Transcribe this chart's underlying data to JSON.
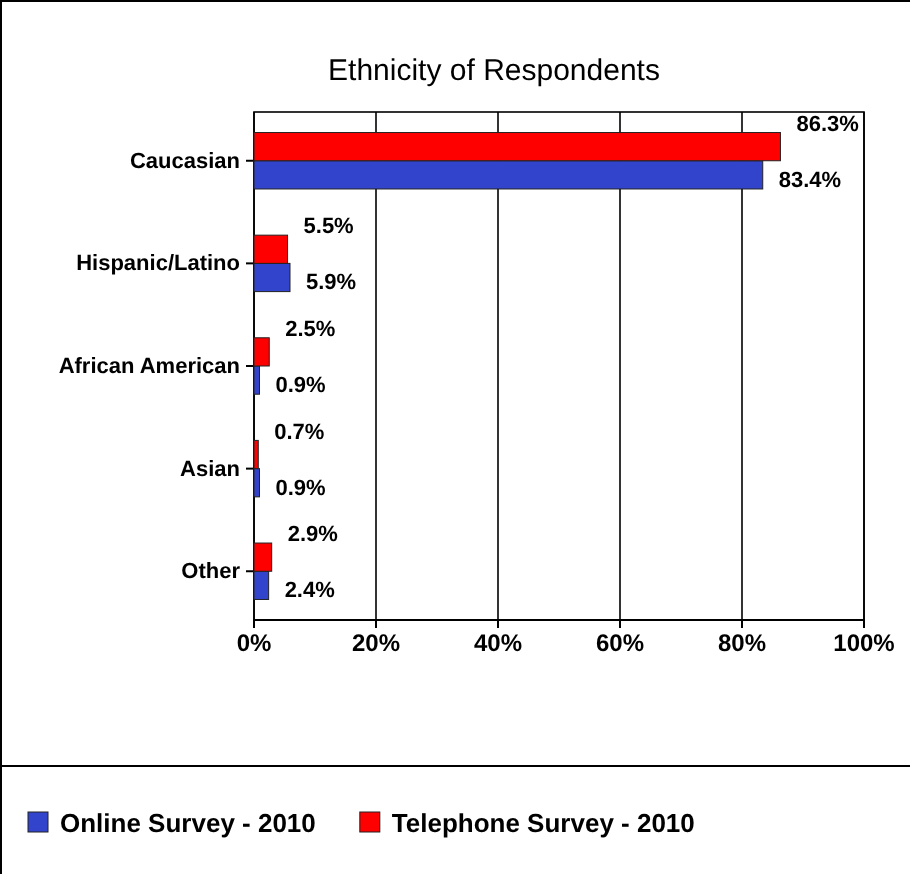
{
  "chart_data": {
    "type": "bar",
    "orientation": "horizontal",
    "title": "Ethnicity of Respondents",
    "categories": [
      "Caucasian",
      "Hispanic/Latino",
      "African American",
      "Asian",
      "Other"
    ],
    "series": [
      {
        "name": "Online Survey - 2010",
        "color": "#3344cc",
        "values": [
          83.4,
          5.9,
          0.9,
          0.9,
          2.4
        ],
        "value_labels": [
          "83.4%",
          "5.9%",
          "0.9%",
          "0.9%",
          "2.4%"
        ]
      },
      {
        "name": "Telephone Survey - 2010",
        "color": "#ff0000",
        "values": [
          86.3,
          5.5,
          2.5,
          0.7,
          2.9
        ],
        "value_labels": [
          "86.3%",
          "5.5%",
          "2.5%",
          "0.7%",
          "2.9%"
        ]
      }
    ],
    "xlim": [
      0,
      100
    ],
    "xticks": [
      {
        "value": 0,
        "label": "0%"
      },
      {
        "value": 20,
        "label": "20%"
      },
      {
        "value": 40,
        "label": "40%"
      },
      {
        "value": 60,
        "label": "60%"
      },
      {
        "value": 80,
        "label": "80%"
      },
      {
        "value": 100,
        "label": "100%"
      }
    ],
    "grid": "x",
    "legend": "bottom"
  }
}
